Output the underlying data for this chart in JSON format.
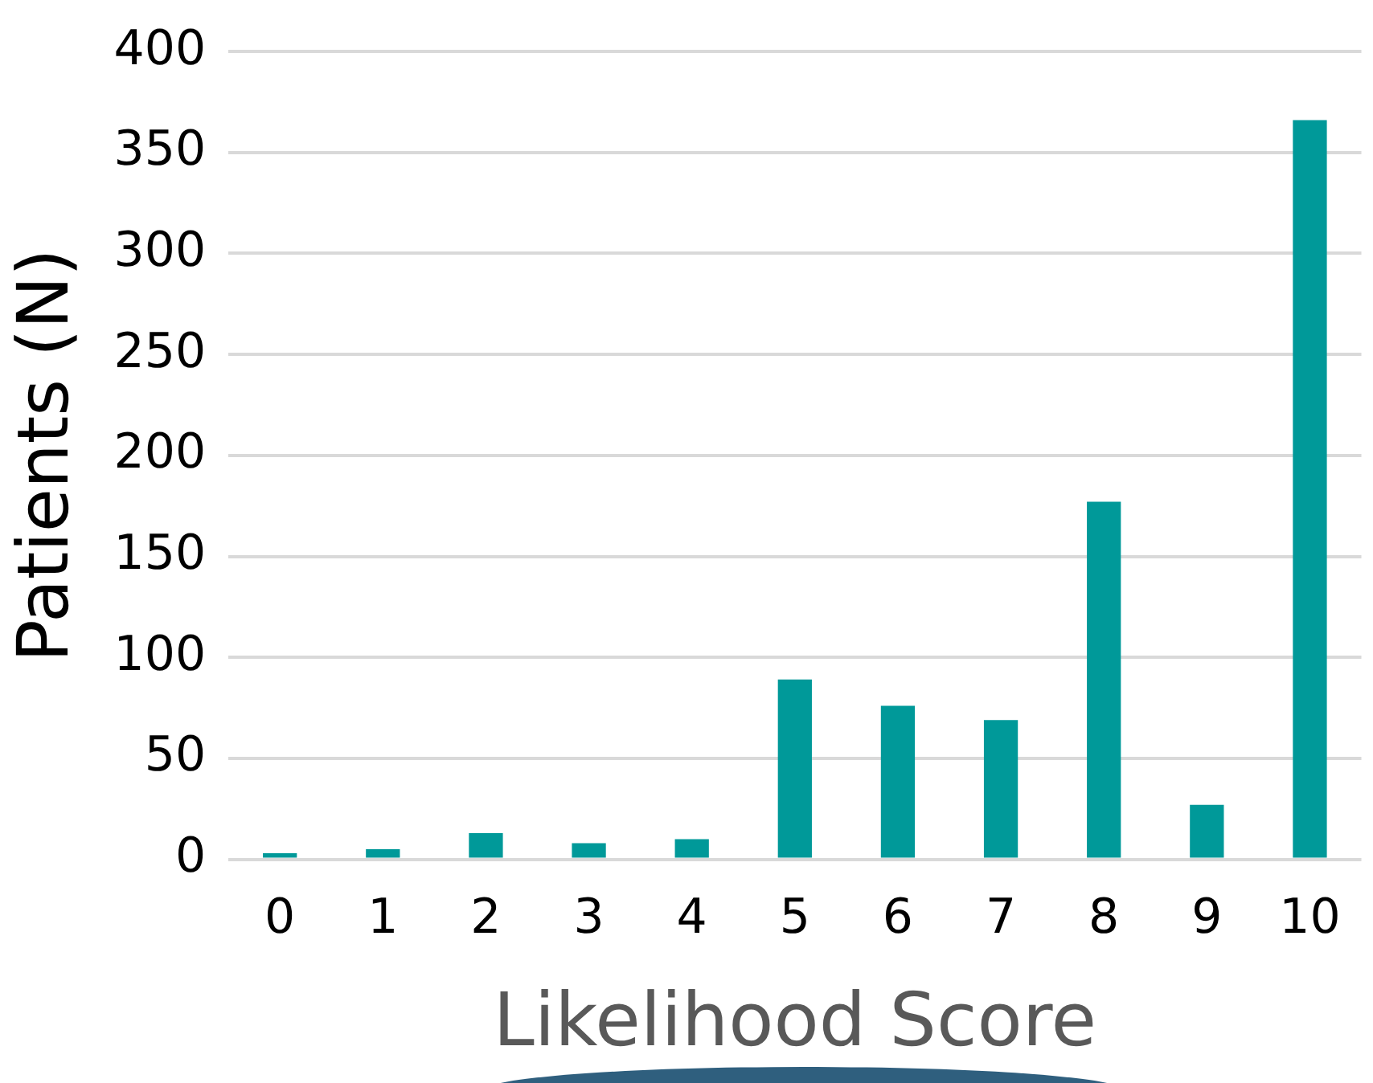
{
  "chart_data": {
    "type": "bar",
    "xlabel": "Likelihood Score",
    "ylabel": "Patients (N)",
    "categories": [
      "0",
      "1",
      "2",
      "3",
      "4",
      "5",
      "6",
      "7",
      "8",
      "9",
      "10"
    ],
    "values": [
      3,
      5,
      13,
      8,
      10,
      89,
      76,
      69,
      177,
      27,
      366
    ],
    "color": "#009999",
    "ylim": [
      0,
      400
    ],
    "yticks": [
      0,
      50,
      100,
      150,
      200,
      250,
      300,
      350,
      400
    ],
    "grid": "y",
    "legend": false
  }
}
